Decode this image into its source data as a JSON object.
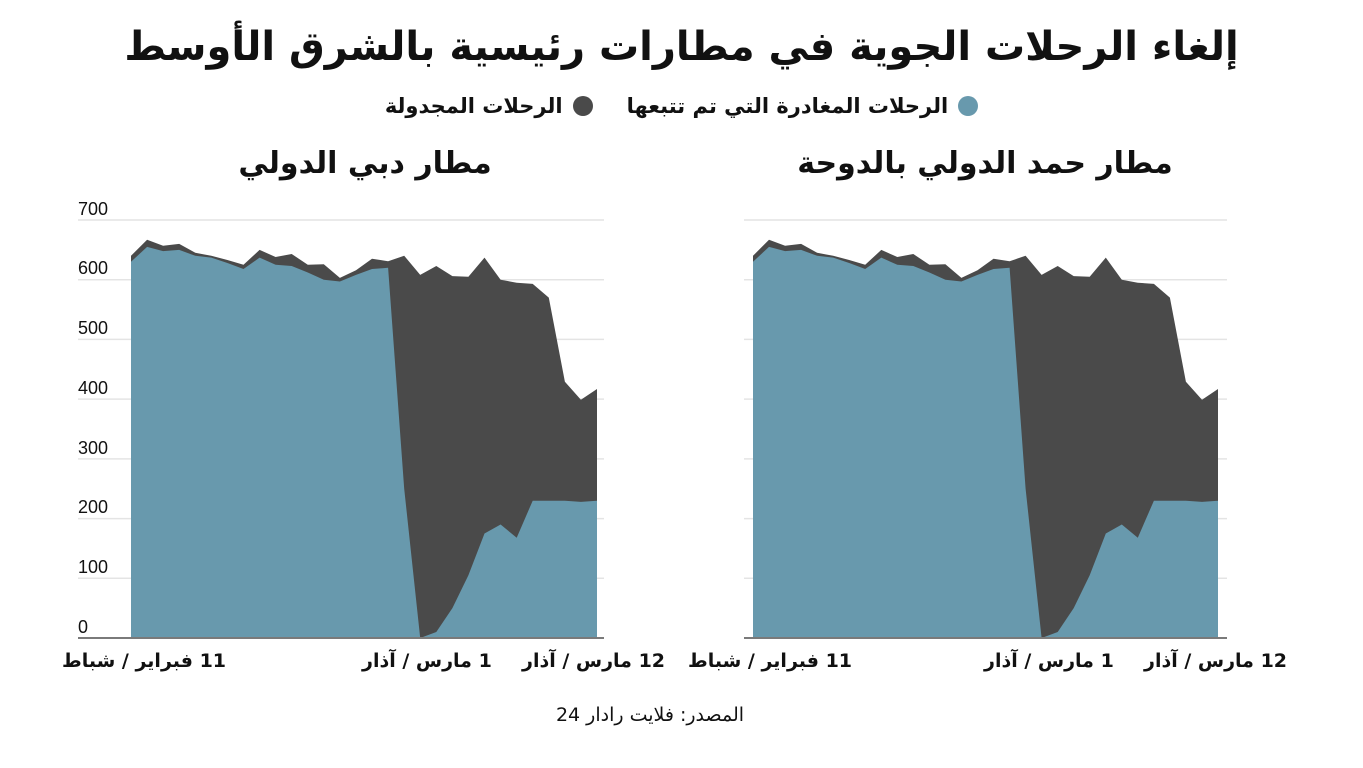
{
  "title": "إلغاء الرحلات الجوية في مطارات رئيسية بالشرق الأوسط",
  "legend": {
    "tracked": {
      "label": "الرحلات المغادرة التي تم تتبعها",
      "color": "#6899AD"
    },
    "scheduled": {
      "label": "الرحلات المجدولة",
      "color": "#4A4A4A"
    }
  },
  "source": "المصدر: فلايت رادار 24",
  "colors": {
    "grid": "#E4E4E4",
    "axis": "#7A7A7A"
  },
  "chart_data": [
    {
      "type": "area",
      "title": "مطار دبي الدولي",
      "xlabel": "",
      "ylabel": "",
      "ylim": [
        0,
        700
      ],
      "yticks": [
        "700",
        "600",
        "500",
        "400",
        "300",
        "200",
        "100",
        "0"
      ],
      "x_tick_labels": [
        "11 فبراير / شباط",
        "1 مارس / آذار",
        "12 مارس / آذار"
      ],
      "grid": true,
      "legend_position": "top",
      "x": [
        0,
        1,
        2,
        3,
        4,
        5,
        6,
        7,
        8,
        9,
        10,
        11,
        12,
        13,
        14,
        15,
        16,
        17,
        18,
        19,
        20,
        21,
        22,
        23,
        24,
        25,
        26,
        27,
        28,
        29
      ],
      "series": [
        {
          "name": "الرحلات المجدولة",
          "values": [
            640,
            667,
            657,
            660,
            645,
            640,
            633,
            625,
            650,
            638,
            643,
            625,
            626,
            603,
            616,
            635,
            631,
            640,
            608,
            623,
            606,
            605,
            637,
            600,
            595,
            593,
            570,
            429,
            399,
            417
          ]
        },
        {
          "name": "الرحلات المغادرة التي تم تتبعها",
          "values": [
            630,
            655,
            648,
            650,
            640,
            637,
            628,
            618,
            637,
            625,
            623,
            612,
            600,
            597,
            608,
            618,
            620,
            250,
            0,
            10,
            50,
            105,
            175,
            190,
            168,
            230,
            230,
            230,
            228,
            230
          ]
        }
      ]
    },
    {
      "type": "area",
      "title": "مطار حمد الدولي بالدوحة",
      "xlabel": "",
      "ylabel": "",
      "ylim": [
        0,
        700
      ],
      "x_tick_labels": [
        "11 فبراير / شباط",
        "1 مارس / آذار",
        "12 مارس / آذار"
      ],
      "grid": true,
      "legend_position": "top",
      "x": [
        0,
        1,
        2,
        3,
        4,
        5,
        6,
        7,
        8,
        9,
        10,
        11,
        12,
        13,
        14,
        15,
        16,
        17,
        18,
        19,
        20,
        21,
        22,
        23,
        24,
        25,
        26,
        27,
        28,
        29
      ],
      "series": [
        {
          "name": "الرحلات المجدولة",
          "values": [
            640,
            667,
            657,
            660,
            645,
            640,
            633,
            625,
            650,
            638,
            643,
            625,
            626,
            603,
            616,
            635,
            631,
            640,
            608,
            623,
            606,
            605,
            637,
            600,
            595,
            593,
            570,
            429,
            399,
            417
          ]
        },
        {
          "name": "الرحلات المغادرة التي تم تتبعها",
          "values": [
            630,
            655,
            648,
            650,
            640,
            637,
            628,
            618,
            637,
            625,
            623,
            612,
            600,
            597,
            608,
            618,
            620,
            250,
            0,
            10,
            50,
            105,
            175,
            190,
            168,
            230,
            230,
            230,
            228,
            230
          ]
        }
      ]
    }
  ]
}
